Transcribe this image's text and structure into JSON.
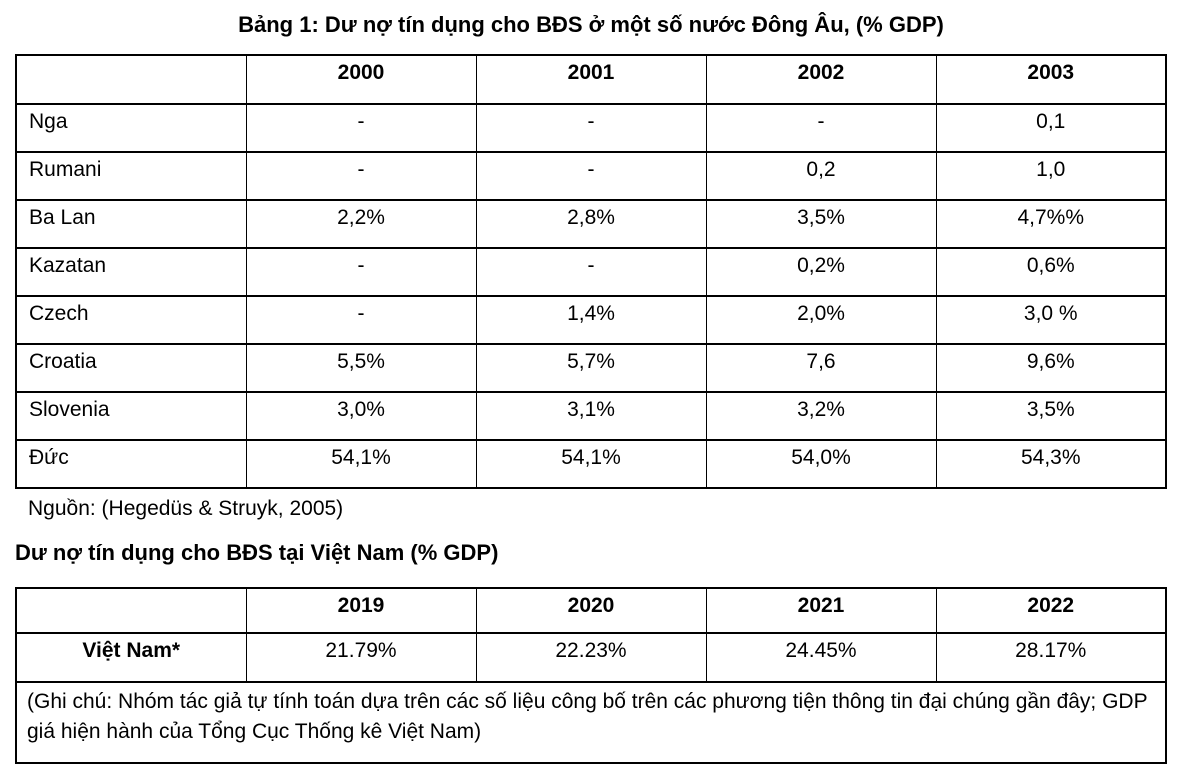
{
  "page": {
    "title": "Bảng 1: Dư nợ tín dụng cho BĐS ở một số nước Đông Âu, (% GDP)",
    "source_line": "Nguồn: (Hegedüs & Struyk, 2005)",
    "subtitle": "Dư nợ tín dụng cho BĐS tại Việt Nam (% GDP)"
  },
  "table1": {
    "columns": [
      "",
      "2000",
      "2001",
      "2002",
      "2003"
    ],
    "rows": [
      {
        "label": "Nga",
        "values": [
          "-",
          "-",
          "-",
          "0,1"
        ]
      },
      {
        "label": "Rumani",
        "values": [
          "-",
          "-",
          "0,2",
          "1,0"
        ]
      },
      {
        "label": "Ba Lan",
        "values": [
          "2,2%",
          "2,8%",
          "3,5%",
          "4,7%%"
        ]
      },
      {
        "label": "Kazatan",
        "values": [
          "-",
          "-",
          "0,2%",
          "0,6%"
        ]
      },
      {
        "label": "Czech",
        "values": [
          "-",
          "1,4%",
          "2,0%",
          "3,0 %"
        ]
      },
      {
        "label": "Croatia",
        "values": [
          "5,5%",
          "5,7%",
          "7,6",
          "9,6%"
        ]
      },
      {
        "label": "Slovenia",
        "values": [
          "3,0%",
          "3,1%",
          "3,2%",
          "3,5%"
        ]
      },
      {
        "label": "Đức",
        "values": [
          "54,1%",
          "54,1%",
          "54,0%",
          "54,3%"
        ]
      }
    ]
  },
  "table2": {
    "columns": [
      "",
      "2019",
      "2020",
      "2021",
      "2022"
    ],
    "rows": [
      {
        "label": "Việt Nam*",
        "values": [
          "21.79%",
          "22.23%",
          "24.45%",
          "28.17%"
        ]
      }
    ],
    "note": "(Ghi chú: Nhóm tác giả tự tính toán dựa trên các số liệu công bố trên các phương tiện thông tin đại chúng gần đây; GDP giá hiện hành của Tổng Cục Thống kê Việt Nam)"
  }
}
